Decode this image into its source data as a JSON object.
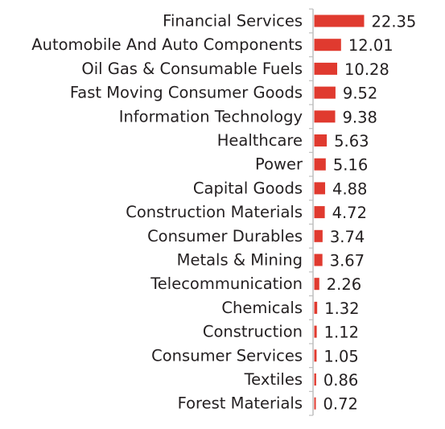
{
  "chart_data": {
    "type": "bar",
    "orientation": "horizontal",
    "categories": [
      "Financial Services",
      "Automobile And Auto Components",
      "Oil Gas & Consumable Fuels",
      "Fast Moving Consumer Goods",
      "Information Technology",
      "Healthcare",
      "Power",
      "Capital Goods",
      "Construction Materials",
      "Consumer Durables",
      "Metals & Mining",
      "Telecommunication",
      "Chemicals",
      "Construction",
      "Consumer Services",
      "Textiles",
      "Forest Materials"
    ],
    "values": [
      22.35,
      12.01,
      10.28,
      9.52,
      9.38,
      5.63,
      5.16,
      4.88,
      4.72,
      3.74,
      3.67,
      2.26,
      1.32,
      1.12,
      1.05,
      0.86,
      0.72
    ],
    "value_labels": [
      "22.35",
      "12.01",
      "10.28",
      "9.52",
      "9.38",
      "5.63",
      "5.16",
      "4.88",
      "4.72",
      "3.74",
      "3.67",
      "2.26",
      "1.32",
      "1.12",
      "1.05",
      "0.86",
      "0.72"
    ],
    "title": "",
    "xlabel": "",
    "ylabel": "",
    "grid": false,
    "legend": "none",
    "colors": {
      "bar": "#e03a2f",
      "axis": "#bfbfbf",
      "text": "#231f20"
    }
  }
}
